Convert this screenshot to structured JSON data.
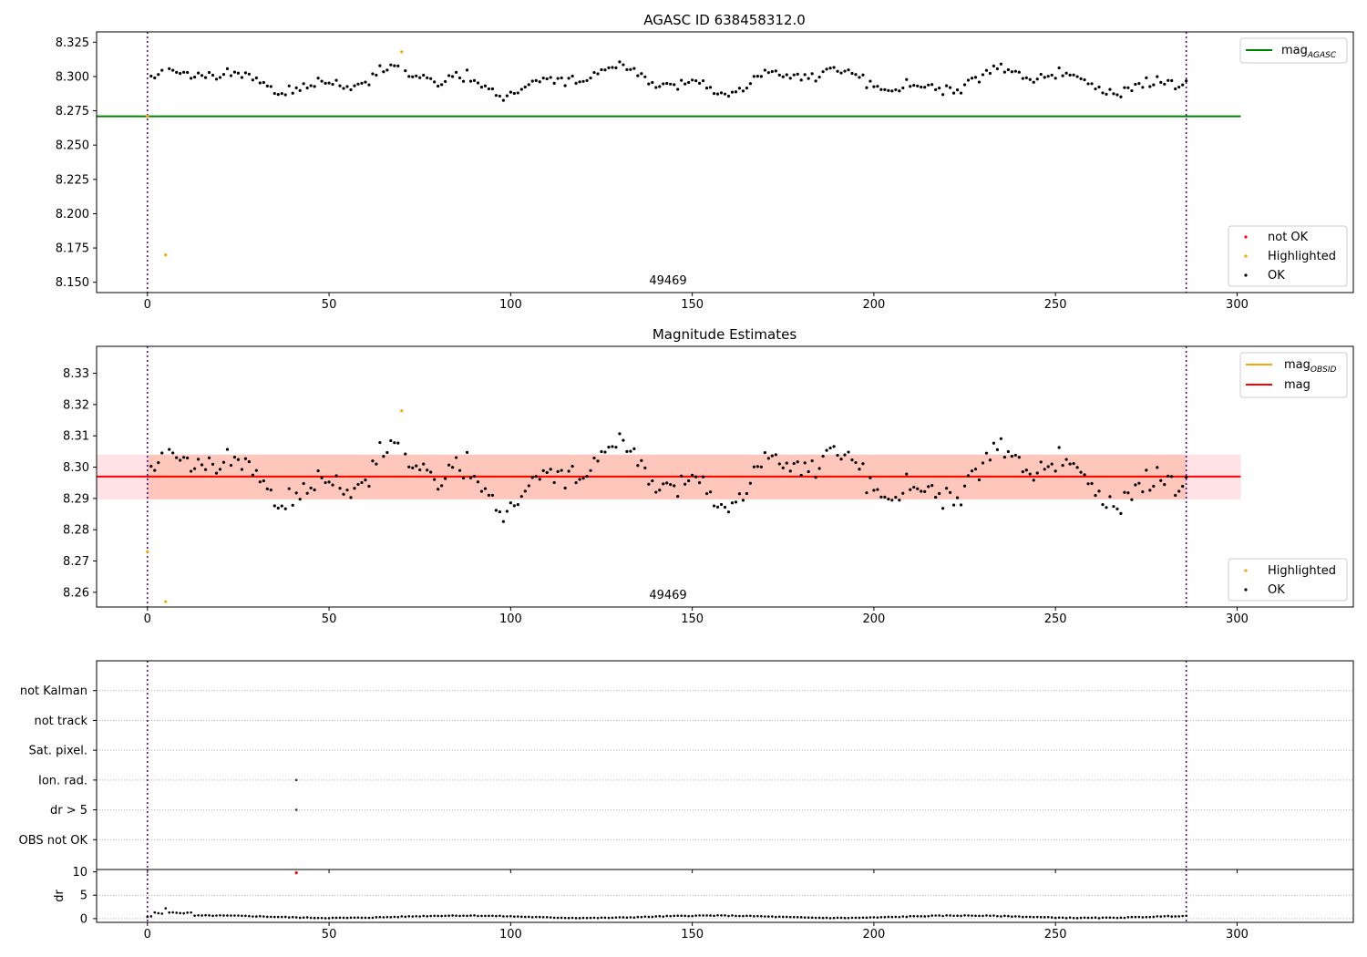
{
  "chart_data": [
    {
      "type": "scatter",
      "title": "AGASC ID 638458312.0",
      "xlim": [
        -14,
        332
      ],
      "ylim": [
        8.1425,
        8.3325
      ],
      "x_ticks": [
        0,
        50,
        100,
        150,
        200,
        250,
        300
      ],
      "y_ticks": [
        8.15,
        8.175,
        8.2,
        8.225,
        8.25,
        8.275,
        8.3,
        8.325
      ],
      "y_tick_decimals": 3,
      "grid": false,
      "reference_lines": [
        {
          "name": "mag",
          "subscript": "AGASC",
          "value": 8.271,
          "color": "#008000"
        }
      ],
      "obs_boundaries": [
        0,
        286
      ],
      "obs_label": {
        "text": "49469",
        "x": 143
      },
      "highlighted": [
        [
          0,
          8.271
        ],
        [
          5,
          8.17
        ],
        [
          70,
          8.318
        ]
      ],
      "not_ok": [],
      "ok_summary": {
        "mean": 8.297,
        "min": 8.277,
        "max": 8.313,
        "x_range": [
          1,
          286
        ]
      },
      "legend_lines": {
        "placement": "upper-right"
      },
      "legend_points": {
        "placement": "lower-right",
        "entries": [
          "not OK",
          "Highlighted",
          "OK"
        ]
      }
    },
    {
      "type": "scatter",
      "title": "Magnitude Estimates",
      "xlim": [
        -14,
        332
      ],
      "ylim": [
        8.2553,
        8.3386
      ],
      "x_ticks": [
        0,
        50,
        100,
        150,
        200,
        250,
        300
      ],
      "y_ticks": [
        8.26,
        8.27,
        8.28,
        8.29,
        8.3,
        8.31,
        8.32,
        8.33
      ],
      "y_tick_decimals": 2,
      "grid": false,
      "reference_lines": [
        {
          "name": "mag",
          "subscript": "OBSID",
          "value": 8.297,
          "color": "#ffa500",
          "band": [
            8.2897,
            8.304
          ],
          "band_color": "#ffa07a"
        },
        {
          "name": "mag",
          "subscript": "",
          "value": 8.297,
          "color": "#ff0000",
          "band": [
            8.2897,
            8.304
          ],
          "band_color": "#ffb6c1"
        }
      ],
      "obs_boundaries": [
        0,
        286
      ],
      "obs_label": {
        "text": "49469",
        "x": 143
      },
      "highlighted": [
        [
          0,
          8.273
        ],
        [
          5,
          8.257
        ],
        [
          70,
          8.318
        ]
      ],
      "ok_summary": {
        "mean": 8.297,
        "min": 8.277,
        "max": 8.313,
        "x_range": [
          1,
          286
        ]
      },
      "legend_lines": {
        "placement": "upper-right"
      },
      "legend_points": {
        "placement": "lower-right",
        "entries": [
          "Highlighted",
          "OK"
        ]
      }
    },
    {
      "type": "scatter",
      "title": "",
      "xlim": [
        -14,
        332
      ],
      "categories": [
        "OBS not OK",
        "dr > 5",
        "Ion. rad.",
        "Sat. pixel.",
        "not track",
        "not Kalman"
      ],
      "flags": [
        {
          "category": "Ion. rad.",
          "x": [
            41
          ]
        },
        {
          "category": "dr > 5",
          "x": [
            41
          ]
        }
      ],
      "obs_boundaries": [
        0,
        286
      ],
      "grid": "horizontal-dotted"
    },
    {
      "type": "scatter",
      "title": "",
      "ylabel": "dr",
      "xlim": [
        -14,
        332
      ],
      "ylim": [
        -0.8,
        10.5
      ],
      "x_ticks": [
        0,
        50,
        100,
        150,
        200,
        250,
        300
      ],
      "y_ticks": [
        0,
        5,
        10
      ],
      "grid": "horizontal-dotted",
      "obs_boundaries": [
        0,
        286
      ],
      "not_ok": [
        [
          41,
          9.8
        ]
      ],
      "dr_summary": {
        "typical": 0.4,
        "max": 2.2,
        "x_range": [
          0,
          286
        ]
      }
    }
  ]
}
